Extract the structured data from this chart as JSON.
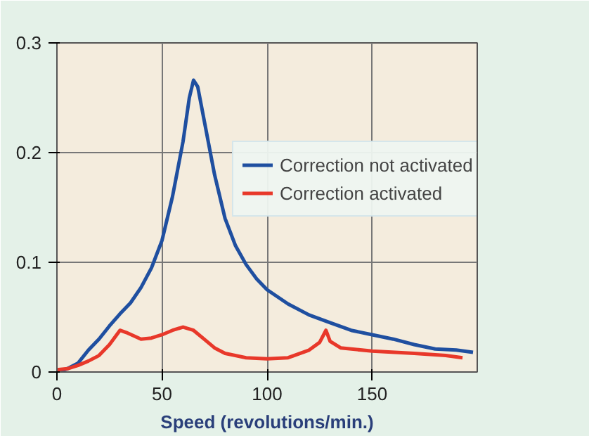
{
  "chart_data": {
    "type": "line",
    "xlabel": "Speed (revolutions/min.)",
    "xlim": [
      0,
      200
    ],
    "ylim": [
      0,
      0.3
    ],
    "xticks": [
      0,
      50,
      100,
      150
    ],
    "yticks": [
      0,
      0.1,
      0.2,
      0.3
    ],
    "grid": true,
    "legend": "top right",
    "line_style": "solid",
    "series": [
      {
        "name": "Correction not activated",
        "color": "#1f4fa0",
        "x": [
          0,
          5,
          10,
          15,
          20,
          25,
          30,
          35,
          40,
          45,
          50,
          55,
          60,
          63,
          65,
          67,
          70,
          75,
          80,
          85,
          90,
          95,
          100,
          110,
          120,
          130,
          140,
          150,
          160,
          170,
          180,
          190,
          198
        ],
        "values": [
          0,
          0.003,
          0.008,
          0.02,
          0.03,
          0.042,
          0.053,
          0.063,
          0.077,
          0.095,
          0.12,
          0.16,
          0.21,
          0.25,
          0.266,
          0.26,
          0.23,
          0.18,
          0.14,
          0.115,
          0.098,
          0.085,
          0.075,
          0.062,
          0.052,
          0.045,
          0.038,
          0.034,
          0.03,
          0.025,
          0.021,
          0.02,
          0.018
        ]
      },
      {
        "name": "Correction activated",
        "color": "#e8382a",
        "x": [
          0,
          5,
          10,
          15,
          20,
          25,
          30,
          33,
          40,
          45,
          50,
          55,
          60,
          65,
          70,
          75,
          80,
          90,
          100,
          110,
          120,
          125,
          128,
          130,
          135,
          150,
          170,
          185,
          193
        ],
        "values": [
          0.002,
          0.003,
          0.006,
          0.01,
          0.015,
          0.025,
          0.038,
          0.036,
          0.03,
          0.031,
          0.034,
          0.038,
          0.041,
          0.038,
          0.03,
          0.022,
          0.017,
          0.013,
          0.012,
          0.013,
          0.02,
          0.027,
          0.038,
          0.028,
          0.022,
          0.019,
          0.017,
          0.015,
          0.013
        ]
      }
    ]
  }
}
